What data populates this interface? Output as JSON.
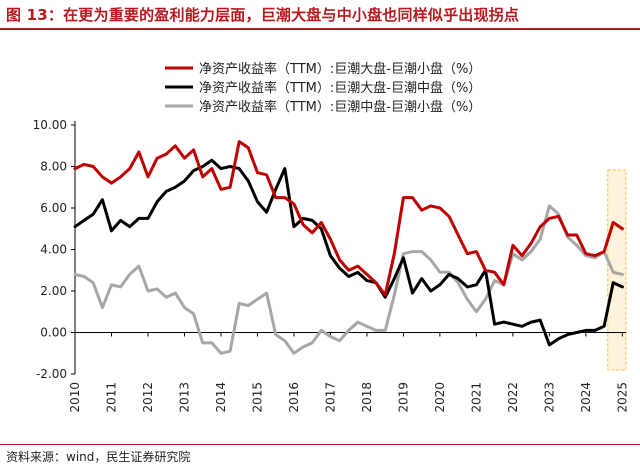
{
  "figure": {
    "title": "图 13：在更为重要的盈利能力层面，巨潮大盘与中小盘也同样似乎出现拐点",
    "source": "资料来源：wind，民生证券研究院"
  },
  "chart_data": {
    "type": "line",
    "ylim": [
      -2,
      10
    ],
    "xlim": [
      2010,
      2025.1
    ],
    "yticks": [
      "10.00",
      "8.00",
      "6.00",
      "4.00",
      "2.00",
      "0.00",
      "-2.00"
    ],
    "ytick_values": [
      10,
      8,
      6,
      4,
      2,
      0,
      -2
    ],
    "xticks": [
      "2010",
      "2011",
      "2012",
      "2013",
      "2014",
      "2015",
      "2016",
      "2017",
      "2018",
      "2019",
      "2020",
      "2021",
      "2022",
      "2023",
      "2024",
      "2025"
    ],
    "xtick_values": [
      2010,
      2011,
      2012,
      2013,
      2014,
      2015,
      2016,
      2017,
      2018,
      2019,
      2020,
      2021,
      2022,
      2023,
      2024,
      2025
    ],
    "grid": false,
    "legend_position": "top",
    "highlight": {
      "x_from": 2024.6,
      "x_to": 2025.1,
      "color": "#fdf3dc",
      "border": "#f5c04a"
    },
    "series": [
      {
        "name": "净资产收益率（TTM）:巨潮大盘-巨潮小盘（%）",
        "color": "#c00000",
        "x": [
          2010,
          2010.25,
          2010.5,
          2010.75,
          2011,
          2011.25,
          2011.5,
          2011.75,
          2012,
          2012.25,
          2012.5,
          2012.75,
          2013,
          2013.25,
          2013.5,
          2013.75,
          2014,
          2014.25,
          2014.5,
          2014.75,
          2015,
          2015.25,
          2015.5,
          2015.75,
          2016,
          2016.25,
          2016.5,
          2016.75,
          2017,
          2017.25,
          2017.5,
          2017.75,
          2018,
          2018.25,
          2018.5,
          2018.75,
          2019,
          2019.25,
          2019.5,
          2019.75,
          2020,
          2020.25,
          2020.5,
          2020.75,
          2021,
          2021.25,
          2021.5,
          2021.75,
          2022,
          2022.25,
          2022.5,
          2022.75,
          2023,
          2023.25,
          2023.5,
          2023.75,
          2024,
          2024.25,
          2024.5,
          2024.75,
          2025
        ],
        "values": [
          7.9,
          8.1,
          8.0,
          7.5,
          7.2,
          7.5,
          7.9,
          8.7,
          7.5,
          8.4,
          8.6,
          9.0,
          8.4,
          8.8,
          7.5,
          7.9,
          6.9,
          7.0,
          9.2,
          8.9,
          7.7,
          7.6,
          6.5,
          6.5,
          6.2,
          5.2,
          4.8,
          5.3,
          4.5,
          3.5,
          3.0,
          3.2,
          2.8,
          2.4,
          1.8,
          3.8,
          6.5,
          6.5,
          5.9,
          6.1,
          6.0,
          5.6,
          4.7,
          3.8,
          3.9,
          3.0,
          2.9,
          2.3,
          4.2,
          3.7,
          4.3,
          5.1,
          5.5,
          5.6,
          4.7,
          4.7,
          3.8,
          3.7,
          3.9,
          5.3,
          5.0
        ]
      },
      {
        "name": "净资产收益率（TTM）:巨潮大盘-巨潮中盘（%）",
        "color": "#000000",
        "x": [
          2010,
          2010.25,
          2010.5,
          2010.75,
          2011,
          2011.25,
          2011.5,
          2011.75,
          2012,
          2012.25,
          2012.5,
          2012.75,
          2013,
          2013.25,
          2013.5,
          2013.75,
          2014,
          2014.25,
          2014.5,
          2014.75,
          2015,
          2015.25,
          2015.5,
          2015.75,
          2016,
          2016.25,
          2016.5,
          2016.75,
          2017,
          2017.25,
          2017.5,
          2017.75,
          2018,
          2018.25,
          2018.5,
          2018.75,
          2019,
          2019.25,
          2019.5,
          2019.75,
          2020,
          2020.25,
          2020.5,
          2020.75,
          2021,
          2021.25,
          2021.5,
          2021.75,
          2022,
          2022.25,
          2022.5,
          2022.75,
          2023,
          2023.25,
          2023.5,
          2023.75,
          2024,
          2024.25,
          2024.5,
          2024.75,
          2025
        ],
        "values": [
          5.1,
          5.4,
          5.7,
          6.4,
          4.9,
          5.4,
          5.1,
          5.5,
          5.5,
          6.3,
          6.8,
          7.0,
          7.3,
          7.8,
          8.0,
          8.3,
          7.9,
          8.0,
          7.9,
          7.3,
          6.3,
          5.8,
          6.9,
          7.9,
          5.1,
          5.5,
          5.4,
          5.0,
          3.7,
          3.1,
          2.7,
          2.9,
          2.5,
          2.4,
          1.7,
          2.6,
          3.6,
          1.9,
          2.6,
          2.0,
          2.3,
          2.8,
          2.6,
          2.2,
          2.3,
          3.0,
          0.4,
          0.5,
          0.4,
          0.3,
          0.5,
          0.6,
          -0.6,
          -0.3,
          -0.1,
          0.0,
          0.1,
          0.1,
          0.3,
          2.4,
          2.2
        ]
      },
      {
        "name": "净资产收益率（TTM）:巨潮中盘-巨潮小盘（%）",
        "color": "#a6a6a6",
        "x": [
          2010,
          2010.25,
          2010.5,
          2010.75,
          2011,
          2011.25,
          2011.5,
          2011.75,
          2012,
          2012.25,
          2012.5,
          2012.75,
          2013,
          2013.25,
          2013.5,
          2013.75,
          2014,
          2014.25,
          2014.5,
          2014.75,
          2015,
          2015.25,
          2015.5,
          2015.75,
          2016,
          2016.25,
          2016.5,
          2016.75,
          2017,
          2017.25,
          2017.5,
          2017.75,
          2018,
          2018.25,
          2018.5,
          2018.75,
          2019,
          2019.25,
          2019.5,
          2019.75,
          2020,
          2020.25,
          2020.5,
          2020.75,
          2021,
          2021.25,
          2021.5,
          2021.75,
          2022,
          2022.25,
          2022.5,
          2022.75,
          2023,
          2023.25,
          2023.5,
          2023.75,
          2024,
          2024.25,
          2024.5,
          2024.75,
          2025
        ],
        "values": [
          2.8,
          2.7,
          2.4,
          1.2,
          2.3,
          2.2,
          2.8,
          3.2,
          2.0,
          2.1,
          1.7,
          1.9,
          1.2,
          0.9,
          -0.5,
          -0.5,
          -1.0,
          -0.9,
          1.4,
          1.3,
          1.6,
          1.9,
          -0.1,
          -0.4,
          -1.0,
          -0.7,
          -0.5,
          0.1,
          -0.2,
          -0.4,
          0.1,
          0.5,
          0.3,
          0.1,
          0.1,
          1.8,
          3.8,
          3.9,
          3.9,
          3.5,
          2.9,
          2.9,
          2.4,
          1.6,
          1.0,
          1.6,
          2.5,
          2.3,
          3.8,
          3.5,
          3.9,
          4.5,
          6.1,
          5.7,
          4.6,
          4.2,
          3.7,
          3.6,
          3.9,
          2.9,
          2.8
        ]
      }
    ]
  }
}
